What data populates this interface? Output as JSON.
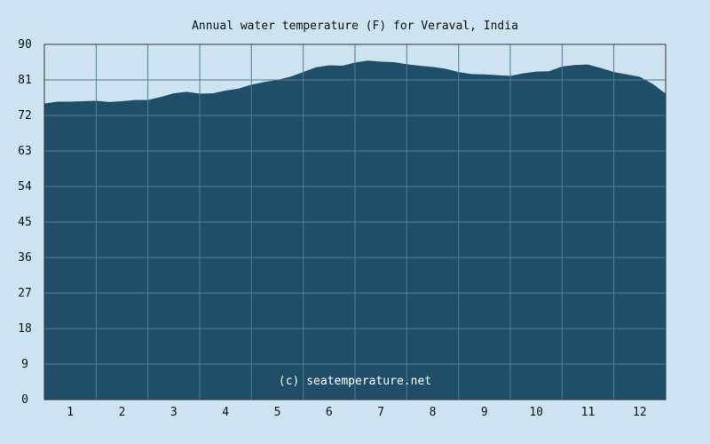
{
  "chart_data": {
    "type": "area",
    "title": "Annual water temperature (F) for Veraval, India",
    "credit": "(c) seatemperature.net",
    "xlabel": "",
    "ylabel": "",
    "ylim": [
      0,
      90
    ],
    "y_ticks": [
      0,
      9,
      18,
      27,
      36,
      45,
      54,
      63,
      72,
      81,
      90
    ],
    "x_ticks": [
      "1",
      "2",
      "3",
      "4",
      "5",
      "6",
      "7",
      "8",
      "9",
      "10",
      "11",
      "12"
    ],
    "grid": true,
    "x": [
      0,
      0.25,
      0.5,
      0.75,
      1.0,
      1.25,
      1.5,
      1.75,
      2.0,
      2.25,
      2.5,
      2.75,
      3.0,
      3.25,
      3.5,
      3.75,
      4.0,
      4.25,
      4.5,
      4.75,
      5.0,
      5.25,
      5.5,
      5.75,
      6.0,
      6.25,
      6.5,
      6.75,
      7.0,
      7.25,
      7.5,
      7.75,
      8.0,
      8.25,
      8.5,
      8.75,
      9.0,
      9.25,
      9.5,
      9.75,
      10.0,
      10.25,
      10.5,
      10.75,
      11.0,
      11.25,
      11.5,
      11.75,
      12.0
    ],
    "values": [
      75.0,
      75.5,
      75.5,
      75.6,
      75.7,
      75.4,
      75.6,
      75.9,
      75.9,
      76.7,
      77.6,
      78.0,
      77.5,
      77.6,
      78.3,
      78.8,
      79.8,
      80.5,
      81.0,
      81.8,
      83.0,
      84.2,
      84.7,
      84.6,
      85.4,
      85.9,
      85.6,
      85.5,
      85.0,
      84.6,
      84.3,
      83.8,
      83.0,
      82.5,
      82.4,
      82.2,
      82.0,
      82.7,
      83.1,
      83.2,
      84.4,
      84.8,
      84.9,
      84.0,
      83.0,
      82.4,
      81.8,
      80.0,
      77.5
    ]
  }
}
